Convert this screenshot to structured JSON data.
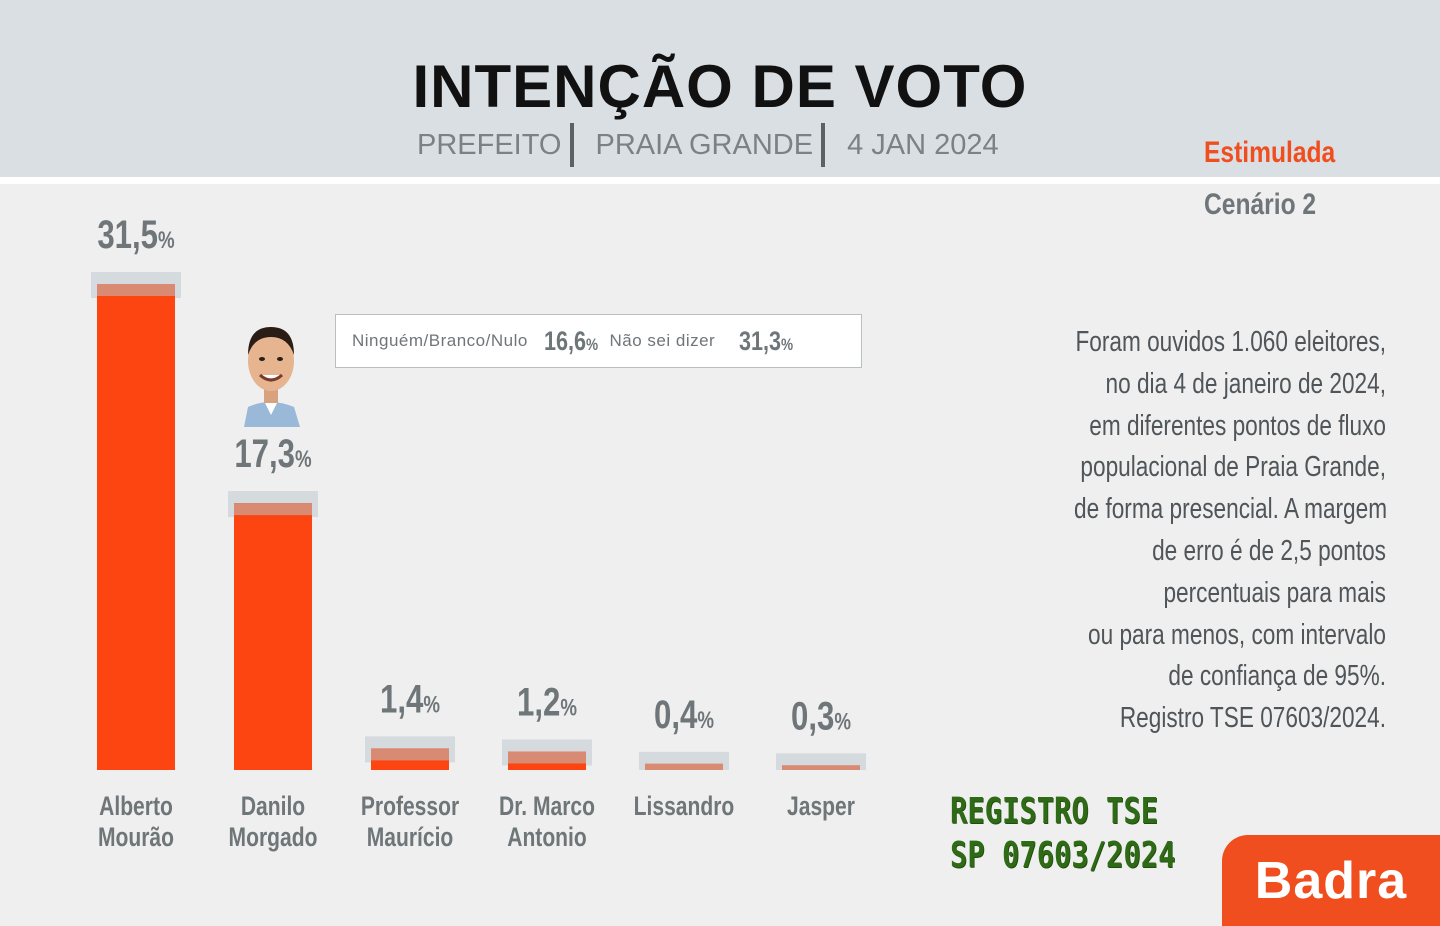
{
  "header": {
    "title": "INTENÇÃO DE VOTO",
    "subtitle_parts": [
      "PREFEITO",
      "PRAIA GRANDE",
      "4 JAN 2024"
    ]
  },
  "tags": {
    "type": "Estimulada",
    "scenario": "Cenário 2"
  },
  "legend": {
    "item1_label": "Ninguém/Branco/Nulo",
    "item1_value": "16,6",
    "item2_label": "Não sei dizer",
    "item2_value": "31,3",
    "unit": "%"
  },
  "description_lines": [
    "Foram ouvidos 1.060 eleitores,",
    "no dia 4 de janeiro de 2024,",
    "em diferentes pontos de fluxo",
    "populacional de Praia Grande,",
    "de forma presencial. A margem",
    "de erro é de 2,5 pontos",
    "percentuais para mais",
    "ou para menos,  com intervalo",
    "de confiança de 95%.",
    "Registro TSE 07603/2024."
  ],
  "stamp": {
    "line1": "REGISTRO TSE",
    "line2": "SP 07603/2024"
  },
  "logo": "Badra",
  "colors": {
    "bar": "#fc4511",
    "margin": "#d4dadd",
    "accent": "#f04e1e",
    "text": "#6f7679"
  },
  "chart_data": {
    "type": "bar",
    "categories": [
      [
        "Alberto",
        "Mourão"
      ],
      [
        "Danilo",
        "Morgado"
      ],
      [
        "Professor",
        "Maurício"
      ],
      [
        "Dr. Marco",
        "Antonio"
      ],
      [
        "Lissandro"
      ],
      [
        "Jasper"
      ]
    ],
    "values": [
      31.5,
      17.3,
      1.4,
      1.2,
      0.4,
      0.3
    ],
    "value_labels": [
      "31,5",
      "17,3",
      "1,4",
      "1,2",
      "0,4",
      "0,3"
    ],
    "unit": "%",
    "error_margin": 2.5,
    "ylim": [
      0,
      33
    ],
    "grid": false,
    "legend_position": "top-center"
  }
}
